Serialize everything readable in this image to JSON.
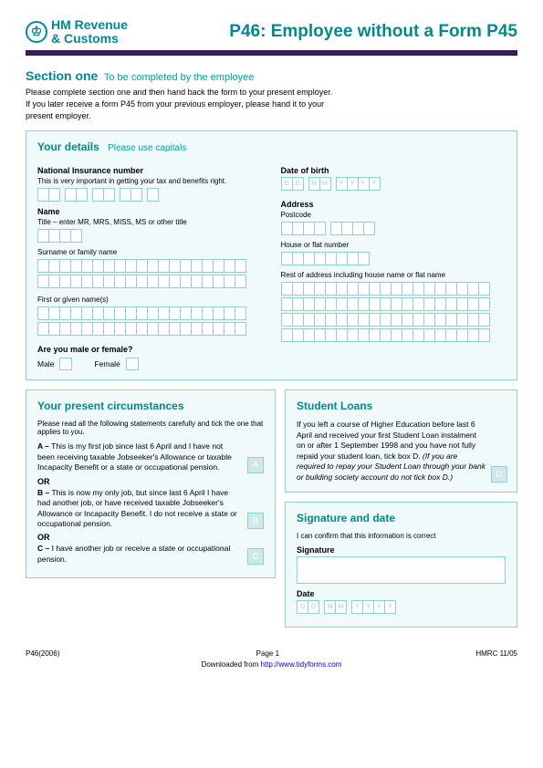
{
  "logo": {
    "brand1": "HM Revenue",
    "brand2": "& Customs"
  },
  "title": "P46: Employee without a Form P45",
  "section1": {
    "heading": "Section one",
    "subtitle": "To be completed by the employee",
    "intro1": "Please complete section one and then hand back the form to your present employer.",
    "intro2": "If you later receive a form P45 from your previous employer, please hand it to your",
    "intro3": "present employer."
  },
  "yourDetails": {
    "heading": "Your details",
    "subtitle": "Please use capitals",
    "niLabel": "National Insurance number",
    "niNote": "This is very important in getting your tax and benefits right.",
    "nameLabel": "Name",
    "titleNote": "Title – enter MR, MRS, MISS, MS or other title",
    "surnameLabel": "Surname or family name",
    "firstnameLabel": "First or given name(s)",
    "genderLabel": "Are you male or female?",
    "male": "Male",
    "female": "Female",
    "dobLabel": "Date of birth",
    "addressLabel": "Address",
    "postcodeLabel": "Postcode",
    "houseLabel": "House or flat number",
    "restLabel": "Rest of address including house name or flat name",
    "placeholders": {
      "D": "D",
      "M": "M",
      "Y": "Y"
    }
  },
  "circumstances": {
    "heading": "Your present circumstances",
    "intro": "Please read all the following statements carefully and tick the one that applies to you.",
    "A_label": "A –",
    "A": "This is my first job since last 6 April and I have not been receiving taxable Jobseeker's Allowance or taxable Incapacity Benefit or a state or occupational pension.",
    "or": "OR",
    "B_label": "B –",
    "B": "This is now my only job, but since last 6 April I have had another job, or have received taxable Jobseeker's Allowance or Incapacity Benefit. I do not receive a state or occupational pension.",
    "C_label": "C –",
    "C": "I have another job or receive a state or occupational pension.",
    "boxA": "A",
    "boxB": "B",
    "boxC": "C"
  },
  "studentLoans": {
    "heading": "Student Loans",
    "text1": "If you left a course of Higher Education before last 6 April and received your first Student Loan instalment on or after 1 September 1998 and you have not fully repaid your student loan, tick box D.",
    "text2": "(If you are required to repay your Student Loan through your bank or building society account do not tick box D.)",
    "boxD": "D"
  },
  "signature": {
    "heading": "Signature and date",
    "confirm": "I can confirm that this information is correct",
    "sigLabel": "Signature",
    "dateLabel": "Date"
  },
  "footer": {
    "left": "P46(2006)",
    "center": "Page 1",
    "right": "HMRC 11/05",
    "download": "Downloaded from ",
    "url": "http://www.tidyforms.com"
  },
  "colors": {
    "teal": "#008a8f",
    "tealLight": "#00a0a6",
    "panelBorder": "#8fd0d4",
    "panelBg": "#f0fafa",
    "purple": "#3b1a5a"
  }
}
